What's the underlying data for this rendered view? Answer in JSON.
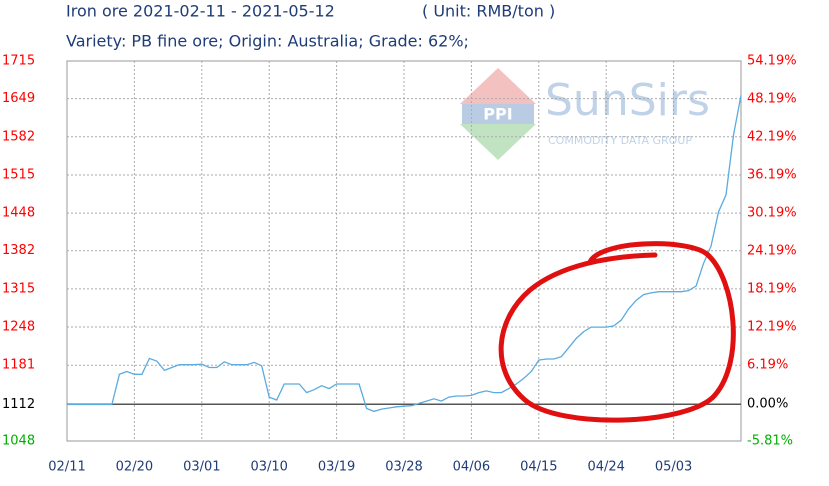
{
  "chart_data": {
    "type": "line",
    "title": "Iron ore 2021-02-11 - 2021-05-12",
    "unit": "( Unit: RMB/ton )",
    "subtitle": "Variety: PB fine ore; Origin: Australia; Grade: 62%;",
    "watermark": {
      "logo": "PPI",
      "brand": "SunSirs",
      "tagline": "COMMODITY DATA GROUP"
    },
    "x": [
      "02/11",
      "02/12",
      "02/13",
      "02/14",
      "02/15",
      "02/16",
      "02/17",
      "02/18",
      "02/19",
      "02/20",
      "02/21",
      "02/22",
      "02/23",
      "02/24",
      "02/25",
      "02/26",
      "02/27",
      "02/28",
      "03/01",
      "03/02",
      "03/03",
      "03/04",
      "03/05",
      "03/06",
      "03/07",
      "03/08",
      "03/09",
      "03/10",
      "03/11",
      "03/12",
      "03/13",
      "03/14",
      "03/15",
      "03/16",
      "03/17",
      "03/18",
      "03/19",
      "03/20",
      "03/21",
      "03/22",
      "03/23",
      "03/24",
      "03/25",
      "03/26",
      "03/27",
      "03/28",
      "03/29",
      "03/30",
      "03/31",
      "04/01",
      "04/02",
      "04/03",
      "04/04",
      "04/05",
      "04/06",
      "04/07",
      "04/08",
      "04/09",
      "04/10",
      "04/11",
      "04/12",
      "04/13",
      "04/14",
      "04/15",
      "04/16",
      "04/17",
      "04/18",
      "04/19",
      "04/20",
      "04/21",
      "04/22",
      "04/23",
      "04/24",
      "04/25",
      "04/26",
      "04/27",
      "04/28",
      "04/29",
      "04/30",
      "05/01",
      "05/02",
      "05/03",
      "05/04",
      "05/05",
      "05/06",
      "05/07",
      "05/08",
      "05/09",
      "05/10",
      "05/11",
      "05/12"
    ],
    "xticks": [
      "02/11",
      "02/20",
      "03/01",
      "03/10",
      "03/19",
      "03/28",
      "04/06",
      "04/15",
      "04/24",
      "05/03"
    ],
    "series": [
      {
        "name": "Iron ore",
        "color": "#5aabdf",
        "values": [
          1112,
          1112,
          1112,
          1112,
          1112,
          1112,
          1112,
          1165,
          1170,
          1165,
          1165,
          1193,
          1188,
          1172,
          1177,
          1182,
          1182,
          1182,
          1183,
          1177,
          1177,
          1187,
          1182,
          1182,
          1182,
          1186,
          1180,
          1125,
          1120,
          1148,
          1148,
          1148,
          1133,
          1138,
          1145,
          1140,
          1148,
          1148,
          1148,
          1148,
          1105,
          1100,
          1104,
          1106,
          1108,
          1109,
          1110,
          1114,
          1118,
          1122,
          1118,
          1125,
          1127,
          1127,
          1128,
          1133,
          1136,
          1133,
          1133,
          1140,
          1148,
          1158,
          1170,
          1190,
          1192,
          1192,
          1196,
          1212,
          1228,
          1240,
          1248,
          1248,
          1248,
          1250,
          1260,
          1280,
          1295,
          1305,
          1308,
          1310,
          1310,
          1310,
          1310,
          1312,
          1320,
          1360,
          1390,
          1450,
          1480,
          1585,
          1655
        ]
      }
    ],
    "ylim": [
      1048,
      1715
    ],
    "yticks": [
      1715,
      1649,
      1582,
      1515,
      1448,
      1382,
      1315,
      1248,
      1181,
      1112,
      1048
    ],
    "y2lim": [
      -5.81,
      54.19
    ],
    "y2ticks": [
      {
        "value": 54.19,
        "label": "54.19%"
      },
      {
        "value": 48.19,
        "label": "48.19%"
      },
      {
        "value": 42.19,
        "label": "42.19%"
      },
      {
        "value": 36.19,
        "label": "36.19%"
      },
      {
        "value": 30.19,
        "label": "30.19%"
      },
      {
        "value": 24.19,
        "label": "24.19%"
      },
      {
        "value": 18.19,
        "label": "18.19%"
      },
      {
        "value": 12.19,
        "label": "12.19%"
      },
      {
        "value": 6.19,
        "label": "6.19%"
      },
      {
        "value": 0,
        "label": "0.00%"
      },
      {
        "value": -5.81,
        "label": "-5.81%"
      }
    ],
    "grid": true,
    "up_color": "#ff0000",
    "flat_color": "#000000",
    "down_color": "#00b000"
  }
}
